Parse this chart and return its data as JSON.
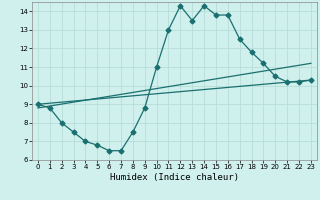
{
  "xlabel": "Humidex (Indice chaleur)",
  "xlim": [
    -0.5,
    23.5
  ],
  "ylim": [
    6,
    14.5
  ],
  "yticks": [
    6,
    7,
    8,
    9,
    10,
    11,
    12,
    13,
    14
  ],
  "xticks": [
    0,
    1,
    2,
    3,
    4,
    5,
    6,
    7,
    8,
    9,
    10,
    11,
    12,
    13,
    14,
    15,
    16,
    17,
    18,
    19,
    20,
    21,
    22,
    23
  ],
  "background_color": "#cff0ec",
  "grid_color": "#b8ddd9",
  "line_color": "#1a7070",
  "line1_x": [
    0,
    1,
    2,
    3,
    4,
    5,
    6,
    7,
    8,
    9,
    10,
    11,
    12,
    13,
    14,
    15,
    16,
    17,
    18,
    19,
    20,
    21,
    22,
    23
  ],
  "line1_y": [
    9.0,
    8.8,
    8.0,
    7.5,
    7.0,
    6.8,
    6.5,
    6.5,
    7.5,
    8.8,
    11.0,
    13.0,
    14.3,
    13.5,
    14.3,
    13.8,
    13.8,
    12.5,
    11.8,
    11.2,
    10.5,
    10.2,
    10.2,
    10.3
  ],
  "line2_x": [
    0,
    23
  ],
  "line2_y": [
    9.0,
    10.3
  ],
  "line3_x": [
    0,
    23
  ],
  "line3_y": [
    8.8,
    11.2
  ],
  "marker": "D",
  "markersize": 2.5
}
